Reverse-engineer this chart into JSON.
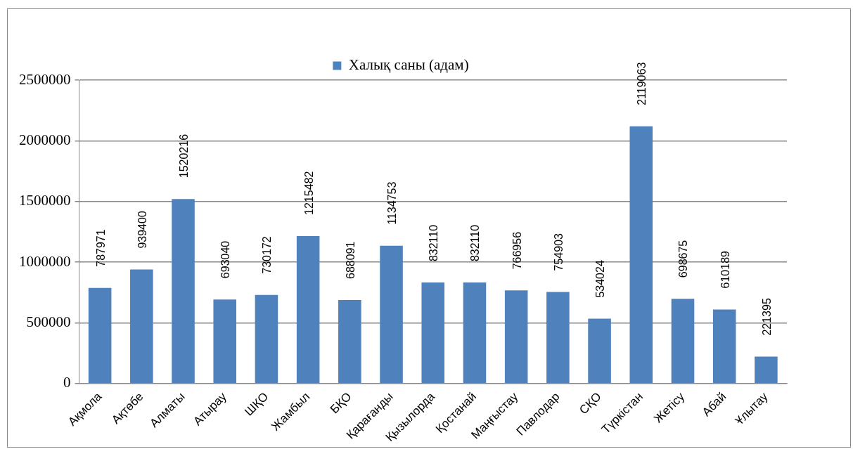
{
  "chart_data": {
    "type": "bar",
    "categories": [
      "Ақмола",
      "Ақтөбе",
      "Алматы",
      "Атырау",
      "ШҚО",
      "Жамбыл",
      "БҚО",
      "Қарағанды",
      "Қызылорда",
      "Қостанай",
      "Маңғыстау",
      "Павлодар",
      "СҚО",
      "Түркістан",
      "Жетісу",
      "Абай",
      "Ұлытау"
    ],
    "series": [
      {
        "name": "Халық саны (адам)",
        "color": "#4f81bd",
        "values": [
          787971,
          939400,
          1520216,
          693040,
          730172,
          1215482,
          688091,
          1134753,
          832110,
          832110,
          766956,
          754903,
          534024,
          2119063,
          698675,
          610189,
          221395
        ]
      }
    ],
    "ylim": [
      0,
      2500000
    ],
    "yticks": [
      0,
      500000,
      1000000,
      1500000,
      2000000,
      2500000
    ],
    "grid": "y",
    "legend": "top",
    "data_labels": true
  }
}
